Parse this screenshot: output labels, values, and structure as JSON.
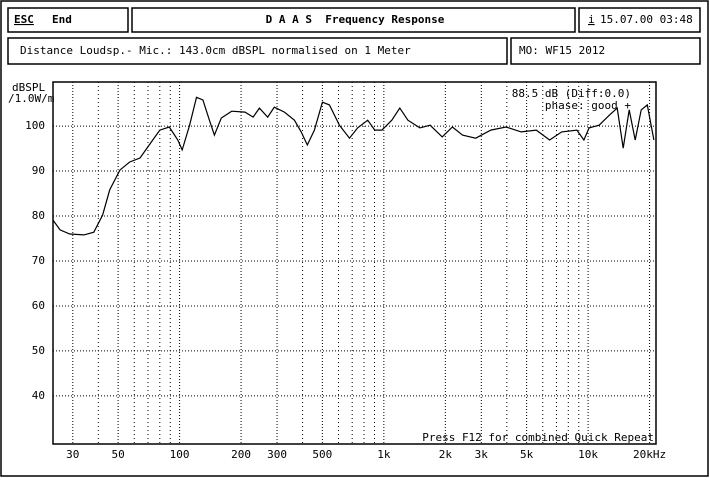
{
  "header": {
    "esc": "ESC",
    "end": "End",
    "title": "D A A S  Frequency Response",
    "info": "i",
    "datetime": "15.07.00 03:48",
    "distance": "Distance Loudsp.- Mic.: 143.0cm dBSPL normalised on 1 Meter",
    "model": "MO: WF15 2012"
  },
  "chart_data": {
    "type": "line",
    "y_label": "dBSPL",
    "y_label2": "/1.0W/m",
    "x_log": true,
    "grid": true,
    "color": "#000000",
    "annotations": [
      "88.5 dB (Diff:0.0)",
      "phase: good +"
    ],
    "footer": "Press F12 for combined Quick Repeat",
    "xlim": [
      24,
      21500
    ],
    "ylim": [
      29.3,
      109.8
    ],
    "xticks": [
      30,
      50,
      100,
      200,
      300,
      500,
      {
        "value": 1000,
        "label": "1k"
      },
      {
        "value": 2000,
        "label": "2k"
      },
      {
        "value": 3000,
        "label": "3k"
      },
      {
        "value": 5000,
        "label": "5k"
      },
      {
        "value": 10000,
        "label": "10k"
      },
      {
        "value": 20000,
        "label": "20kHz"
      }
    ],
    "x_minor_ticks": [
      40,
      60,
      70,
      80,
      90,
      400,
      600,
      700,
      800,
      900,
      4000,
      6000,
      7000,
      8000,
      9000
    ],
    "yticks": [
      40,
      50,
      60,
      70,
      80,
      90,
      100
    ],
    "x": [
      24,
      26,
      29,
      34,
      38,
      42,
      45.5,
      51,
      57,
      64,
      71,
      80,
      89,
      98,
      103,
      112,
      121,
      130,
      140,
      148,
      160,
      180,
      209,
      229,
      246,
      270,
      291,
      326,
      365,
      394,
      422,
      457,
      500,
      541,
      606,
      679,
      744,
      834,
      903,
      978,
      1094,
      1197,
      1311,
      1502,
      1684,
      1930,
      2165,
      2427,
      2815,
      3340,
      3965,
      4703,
      5580,
      6478,
      7425,
      8813,
      9543,
      10113,
      11318,
      12680,
      13880,
      14850,
      15900,
      17000,
      18200,
      19500,
      21000
    ],
    "series": [
      {
        "values": [
          79.1,
          76.9,
          76,
          75.8,
          76.4,
          80.2,
          85.8,
          90.2,
          92,
          92.9,
          95.8,
          99.1,
          99.8,
          96.9,
          94.7,
          100.2,
          106.4,
          105.8,
          101.3,
          98,
          101.8,
          103.3,
          103.1,
          102,
          104,
          102,
          104.2,
          103.1,
          101.3,
          98.7,
          95.8,
          99.1,
          105.3,
          104.7,
          100.2,
          97.3,
          99.6,
          101.3,
          99.1,
          99.1,
          101.3,
          104,
          101.3,
          99.6,
          100.2,
          97.6,
          99.8,
          98,
          97.3,
          99.1,
          99.8,
          98.7,
          99.1,
          96.9,
          98.7,
          99.1,
          96.9,
          99.6,
          100.2,
          102.4,
          104,
          95.1,
          103.6,
          96.9,
          103.6,
          104.7,
          96.9
        ]
      }
    ]
  }
}
